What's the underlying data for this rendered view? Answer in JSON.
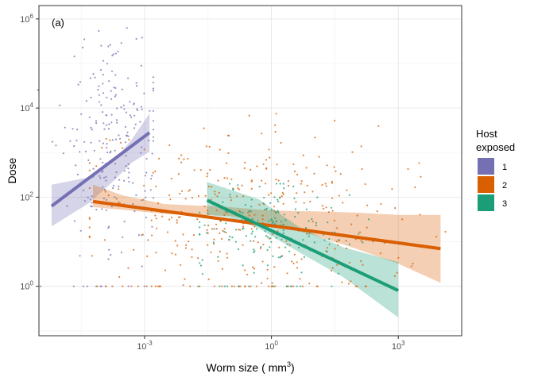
{
  "chart_data": {
    "type": "scatter",
    "panel_tag": "(a)",
    "xlabel": "Worm size ( mm",
    "xlabel_sup": "3",
    "xlabel_end": ")",
    "ylabel": "Dose",
    "xscale": "log10",
    "yscale": "log10",
    "xlim": [
      3.16e-06,
      31623
    ],
    "ylim": [
      0.0776,
      1995000.0
    ],
    "x_ticks": [
      {
        "value": 0.001,
        "base": "10",
        "exp": "-3"
      },
      {
        "value": 1,
        "base": "10",
        "exp": "0"
      },
      {
        "value": 1000,
        "base": "10",
        "exp": "3"
      }
    ],
    "y_ticks": [
      {
        "value": 1,
        "base": "10",
        "exp": "0"
      },
      {
        "value": 100,
        "base": "10",
        "exp": "2"
      },
      {
        "value": 10000,
        "base": "10",
        "exp": "4"
      },
      {
        "value": 1000000,
        "base": "10",
        "exp": "6"
      }
    ],
    "grid": true,
    "legend": {
      "title_lines": [
        "Host",
        "exposed"
      ],
      "placement": "right"
    },
    "series": [
      {
        "name": "1",
        "color": "#7570B3",
        "fit": {
          "x": [
            6.3e-06,
            0.0013
          ],
          "y": [
            63,
            2800
          ]
        },
        "band": {
          "x": [
            6.3e-06,
            5e-05,
            0.0002,
            0.0005,
            0.0013
          ],
          "lower": [
            22,
            75,
            250,
            600,
            1050
          ],
          "upper": [
            190,
            280,
            700,
            2000,
            7500
          ]
        },
        "points_range": {
          "x": [
            3e-06,
            0.0016
          ],
          "y": [
            1,
            1000000
          ]
        },
        "points_center": {
          "x": 0.0002,
          "y": 1500
        },
        "n_points": 230
      },
      {
        "name": "2",
        "color": "#D95F02",
        "fit": {
          "x": [
            6e-05,
            10000
          ],
          "y": [
            80,
            7
          ]
        },
        "band": {
          "x": [
            6e-05,
            0.0003,
            0.003,
            0.1,
            1,
            10,
            100,
            1000,
            10000
          ],
          "lower": [
            60,
            52,
            42,
            38,
            25,
            14,
            7,
            3.2,
            1.2
          ],
          "upper": [
            190,
            110,
            70,
            60,
            50,
            48,
            45,
            40,
            40
          ]
        },
        "points_range": {
          "x": [
            5e-05,
            20000
          ],
          "y": [
            1,
            40000
          ]
        },
        "points_center": {
          "x": 0.3,
          "y": 40
        },
        "n_points": 380
      },
      {
        "name": "3",
        "color": "#1B9E77",
        "fit": {
          "x": [
            0.03,
            1000
          ],
          "y": [
            85,
            0.8
          ]
        },
        "band": {
          "x": [
            0.03,
            0.1,
            0.5,
            5,
            50,
            1000
          ],
          "lower": [
            40,
            35,
            20,
            5.5,
            1.6,
            0.2
          ],
          "upper": [
            220,
            150,
            90,
            20,
            7.5,
            3.5
          ]
        },
        "points_range": {
          "x": [
            0.02,
            200
          ],
          "y": [
            1,
            200
          ]
        },
        "points_center": {
          "x": 1,
          "y": 25
        },
        "n_points": 170
      }
    ]
  }
}
